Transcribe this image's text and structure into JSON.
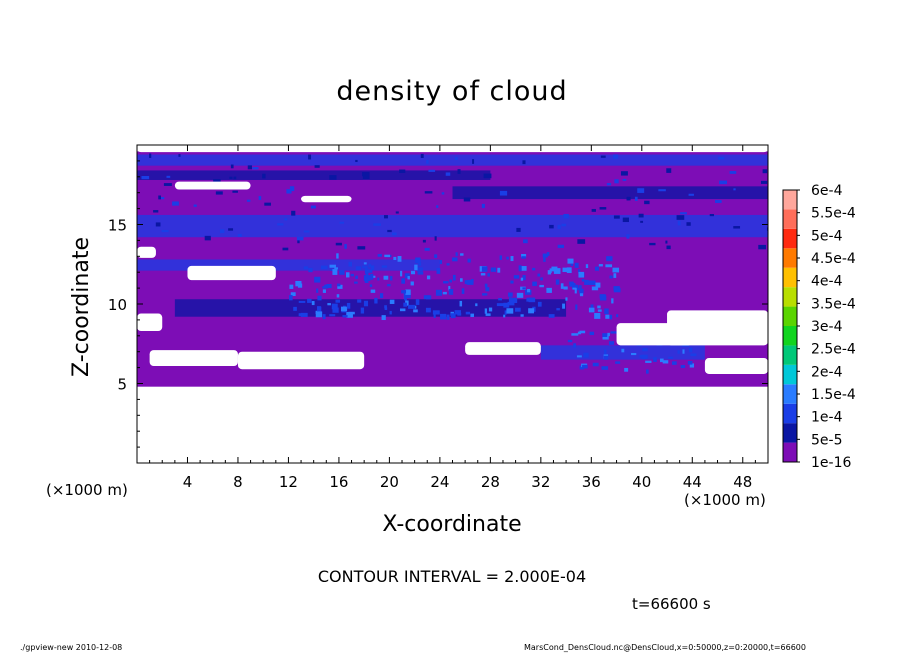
{
  "chart_data": {
    "type": "heatmap",
    "title": "density of cloud",
    "xlabel": "X-coordinate",
    "ylabel": "Z-coordinate",
    "x_unit_left": "(×1000 m)",
    "x_unit_right": "(×1000 m)",
    "xlim": [
      0,
      50
    ],
    "ylim": [
      0,
      20
    ],
    "x_ticks": [
      4,
      8,
      12,
      16,
      20,
      24,
      28,
      32,
      36,
      40,
      44,
      48
    ],
    "y_ticks": [
      5,
      10,
      15
    ],
    "colorbar": {
      "levels": [
        "1e-16",
        "5e-5",
        "1e-4",
        "1.5e-4",
        "2e-4",
        "2.5e-4",
        "3e-4",
        "3.5e-4",
        "4e-4",
        "4.5e-4",
        "5e-4",
        "5.5e-4",
        "6e-4"
      ],
      "colors": [
        "#7d0db6",
        "#0a16a3",
        "#1a3ee6",
        "#2a7cff",
        "#00c8d8",
        "#00c878",
        "#11d41f",
        "#5ad400",
        "#b8de00",
        "#ffc000",
        "#ff7a00",
        "#ff2a10",
        "#ff6e5a",
        "#ffa79c"
      ]
    },
    "contour_interval": "CONTOUR INTERVAL = 2.000E-04",
    "time": "t=66600 s"
  },
  "footer": {
    "left": "./gpview-new  2010-12-08",
    "right": "MarsCond_DensCloud.nc@DensCloud,x=0:50000,z=0:20000,t=66600"
  }
}
